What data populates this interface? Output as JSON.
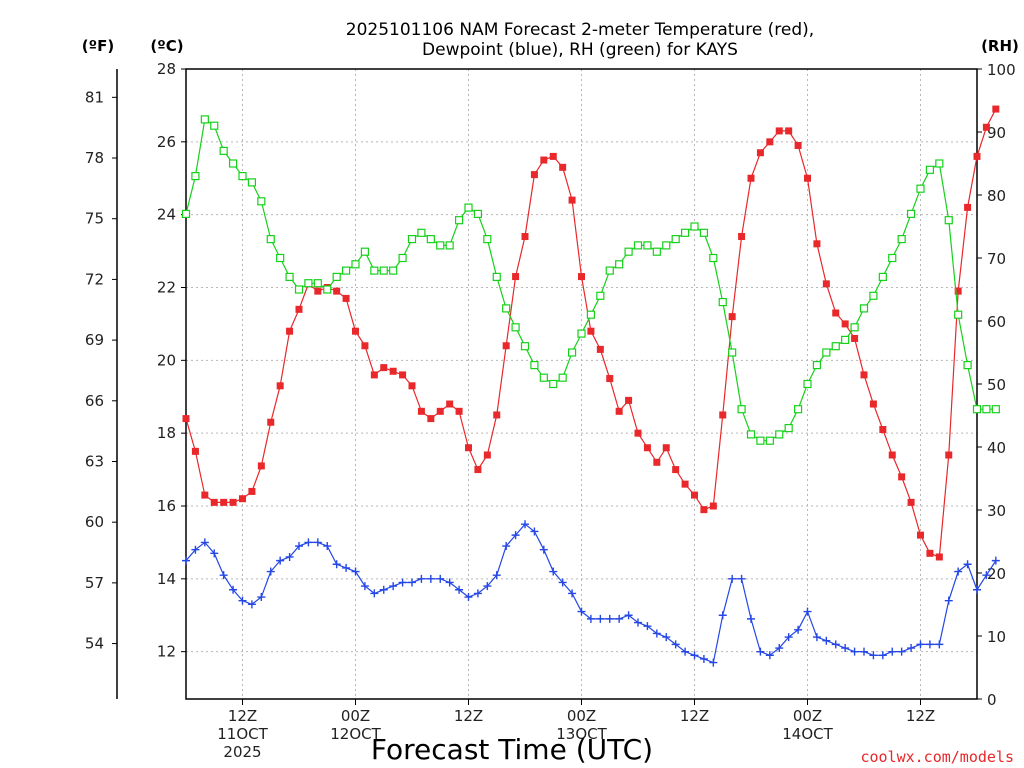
{
  "chart_data": {
    "type": "line",
    "title_line1": "2025101106 NAM Forecast 2-meter Temperature (red),",
    "title_line2": "Dewpoint (blue), RH (green) for KAYS",
    "units": {
      "f": "(ºF)",
      "c": "(ºC)",
      "rh": "(RH)"
    },
    "xlabel": "Forecast Time (UTC)",
    "credit": "coolwx.com/models",
    "colors": {
      "temperature": "#e8282b",
      "dewpoint": "#2447e6",
      "rh": "#16d11a"
    },
    "grid": true,
    "x_range_hours": [
      0,
      84
    ],
    "celsius_range": [
      10.7,
      28
    ],
    "celsius_ticks": [
      "12",
      "14",
      "16",
      "18",
      "20",
      "22",
      "24",
      "26",
      "28"
    ],
    "fahrenheit_ticks": [
      "54",
      "57",
      "60",
      "63",
      "66",
      "69",
      "72",
      "75",
      "78",
      "81"
    ],
    "rh_range": [
      0,
      100
    ],
    "rh_ticks": [
      "0",
      "10",
      "20",
      "30",
      "40",
      "50",
      "60",
      "70",
      "80",
      "90",
      "100"
    ],
    "x_ticks": [
      {
        "hour": 6,
        "lines": [
          "12Z",
          "11OCT",
          "2025"
        ]
      },
      {
        "hour": 18,
        "lines": [
          "00Z",
          "12OCT"
        ]
      },
      {
        "hour": 30,
        "lines": [
          "12Z"
        ]
      },
      {
        "hour": 42,
        "lines": [
          "00Z",
          "13OCT"
        ]
      },
      {
        "hour": 54,
        "lines": [
          "12Z"
        ]
      },
      {
        "hour": 66,
        "lines": [
          "00Z",
          "14OCT"
        ]
      },
      {
        "hour": 78,
        "lines": [
          "12Z"
        ]
      }
    ],
    "series": [
      {
        "name": "Temperature",
        "unit": "C",
        "marker": "square",
        "values": [
          18.4,
          17.5,
          16.3,
          16.1,
          16.1,
          16.1,
          16.2,
          16.4,
          17.1,
          18.3,
          19.3,
          20.8,
          21.4,
          22.1,
          21.9,
          22.0,
          21.9,
          21.7,
          20.8,
          20.4,
          19.6,
          19.8,
          19.7,
          19.6,
          19.3,
          18.6,
          18.4,
          18.6,
          18.8,
          18.6,
          17.6,
          17.0,
          17.4,
          18.5,
          20.4,
          22.3,
          23.4,
          25.1,
          25.5,
          25.6,
          25.3,
          24.4,
          22.3,
          20.8,
          20.3,
          19.5,
          18.6,
          18.9,
          18.0,
          17.6,
          17.2,
          17.6,
          17.0,
          16.6,
          16.3,
          15.9,
          16.0,
          18.5,
          21.2,
          23.4,
          25.0,
          25.7,
          26.0,
          26.3,
          26.3,
          25.9,
          25.0,
          23.2,
          22.1,
          21.3,
          21.0,
          20.6,
          19.6,
          18.8,
          18.1,
          17.4,
          16.8,
          16.1,
          15.2,
          14.7,
          14.6,
          17.4,
          21.9,
          24.2,
          25.6,
          26.4,
          26.9
        ]
      },
      {
        "name": "Dewpoint",
        "unit": "C",
        "marker": "plus",
        "values": [
          14.5,
          14.8,
          15.0,
          14.7,
          14.1,
          13.7,
          13.4,
          13.3,
          13.5,
          14.2,
          14.5,
          14.6,
          14.9,
          15.0,
          15.0,
          14.9,
          14.4,
          14.3,
          14.2,
          13.8,
          13.6,
          13.7,
          13.8,
          13.9,
          13.9,
          14.0,
          14.0,
          14.0,
          13.9,
          13.7,
          13.5,
          13.6,
          13.8,
          14.1,
          14.9,
          15.2,
          15.5,
          15.3,
          14.8,
          14.2,
          13.9,
          13.6,
          13.1,
          12.9,
          12.9,
          12.9,
          12.9,
          13.0,
          12.8,
          12.7,
          12.5,
          12.4,
          12.2,
          12.0,
          11.9,
          11.8,
          11.7,
          13.0,
          14.0,
          14.0,
          12.9,
          12.0,
          11.9,
          12.1,
          12.4,
          12.6,
          13.1,
          12.4,
          12.3,
          12.2,
          12.1,
          12.0,
          12.0,
          11.9,
          11.9,
          12.0,
          12.0,
          12.1,
          12.2,
          12.2,
          12.2,
          13.4,
          14.2,
          14.4,
          13.7,
          14.1,
          14.5
        ]
      },
      {
        "name": "RH",
        "unit": "%",
        "marker": "open-square",
        "values": [
          77,
          83,
          92,
          91,
          87,
          85,
          83,
          82,
          79,
          73,
          70,
          67,
          65,
          66,
          66,
          65,
          67,
          68,
          69,
          71,
          68,
          68,
          68,
          70,
          73,
          74,
          73,
          72,
          72,
          76,
          78,
          77,
          73,
          67,
          62,
          59,
          56,
          53,
          51,
          50,
          51,
          55,
          58,
          61,
          64,
          68,
          69,
          71,
          72,
          72,
          71,
          72,
          73,
          74,
          75,
          74,
          70,
          63,
          55,
          46,
          42,
          41,
          41,
          42,
          43,
          46,
          50,
          53,
          55,
          56,
          57,
          59,
          62,
          64,
          67,
          70,
          73,
          77,
          81,
          84,
          85,
          76,
          61,
          53,
          46,
          46,
          46
        ]
      }
    ]
  }
}
